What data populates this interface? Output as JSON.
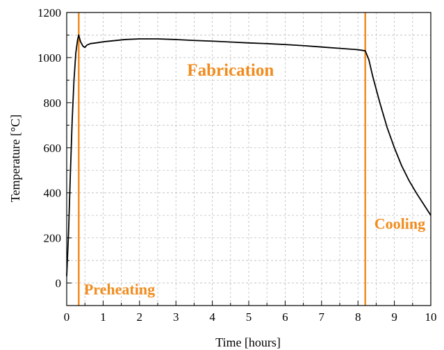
{
  "chart_data": {
    "type": "line",
    "xlabel": "Time [hours]",
    "ylabel": "Temperature [°C]",
    "xlim": [
      0,
      10
    ],
    "ylim": [
      -100,
      1200
    ],
    "x_ticks": [
      "0",
      "1",
      "2",
      "3",
      "4",
      "5",
      "6",
      "7",
      "8",
      "9",
      "10"
    ],
    "y_ticks": [
      "0",
      "200",
      "400",
      "600",
      "800",
      "1000",
      "1200"
    ],
    "grid": "dashed",
    "accent_color": "#f08c1e",
    "line_color": "#000000",
    "series": [
      {
        "x": [
          0,
          0.05,
          0.1,
          0.15,
          0.2,
          0.25,
          0.3,
          0.33,
          0.38,
          0.45,
          0.5,
          0.55,
          0.65,
          0.8,
          1.0,
          1.3,
          1.6,
          2.0,
          2.5,
          3.0,
          3.5,
          4.0,
          4.5,
          5.0,
          5.5,
          6.0,
          6.5,
          7.0,
          7.5,
          8.0,
          8.2,
          8.3,
          8.4,
          8.6,
          8.8,
          9.0,
          9.2,
          9.4,
          9.6,
          9.8,
          10.0
        ],
        "y": [
          30,
          220,
          480,
          720,
          900,
          1020,
          1080,
          1100,
          1070,
          1050,
          1045,
          1055,
          1062,
          1065,
          1070,
          1075,
          1080,
          1083,
          1083,
          1080,
          1076,
          1073,
          1069,
          1065,
          1062,
          1058,
          1053,
          1047,
          1041,
          1035,
          1030,
          990,
          920,
          800,
          690,
          600,
          520,
          455,
          400,
          350,
          300
        ]
      }
    ],
    "phases": [
      {
        "x": 0.33,
        "label": "Preheating"
      },
      {
        "x": 8.2,
        "label": "Cooling"
      }
    ],
    "annotations": [
      {
        "text": "Fabrication",
        "x": 4.5,
        "y": 920
      },
      {
        "text": "Preheating",
        "x": 1.45,
        "y": -50
      },
      {
        "text": "Cooling",
        "x": 9.15,
        "y": 240
      }
    ]
  }
}
